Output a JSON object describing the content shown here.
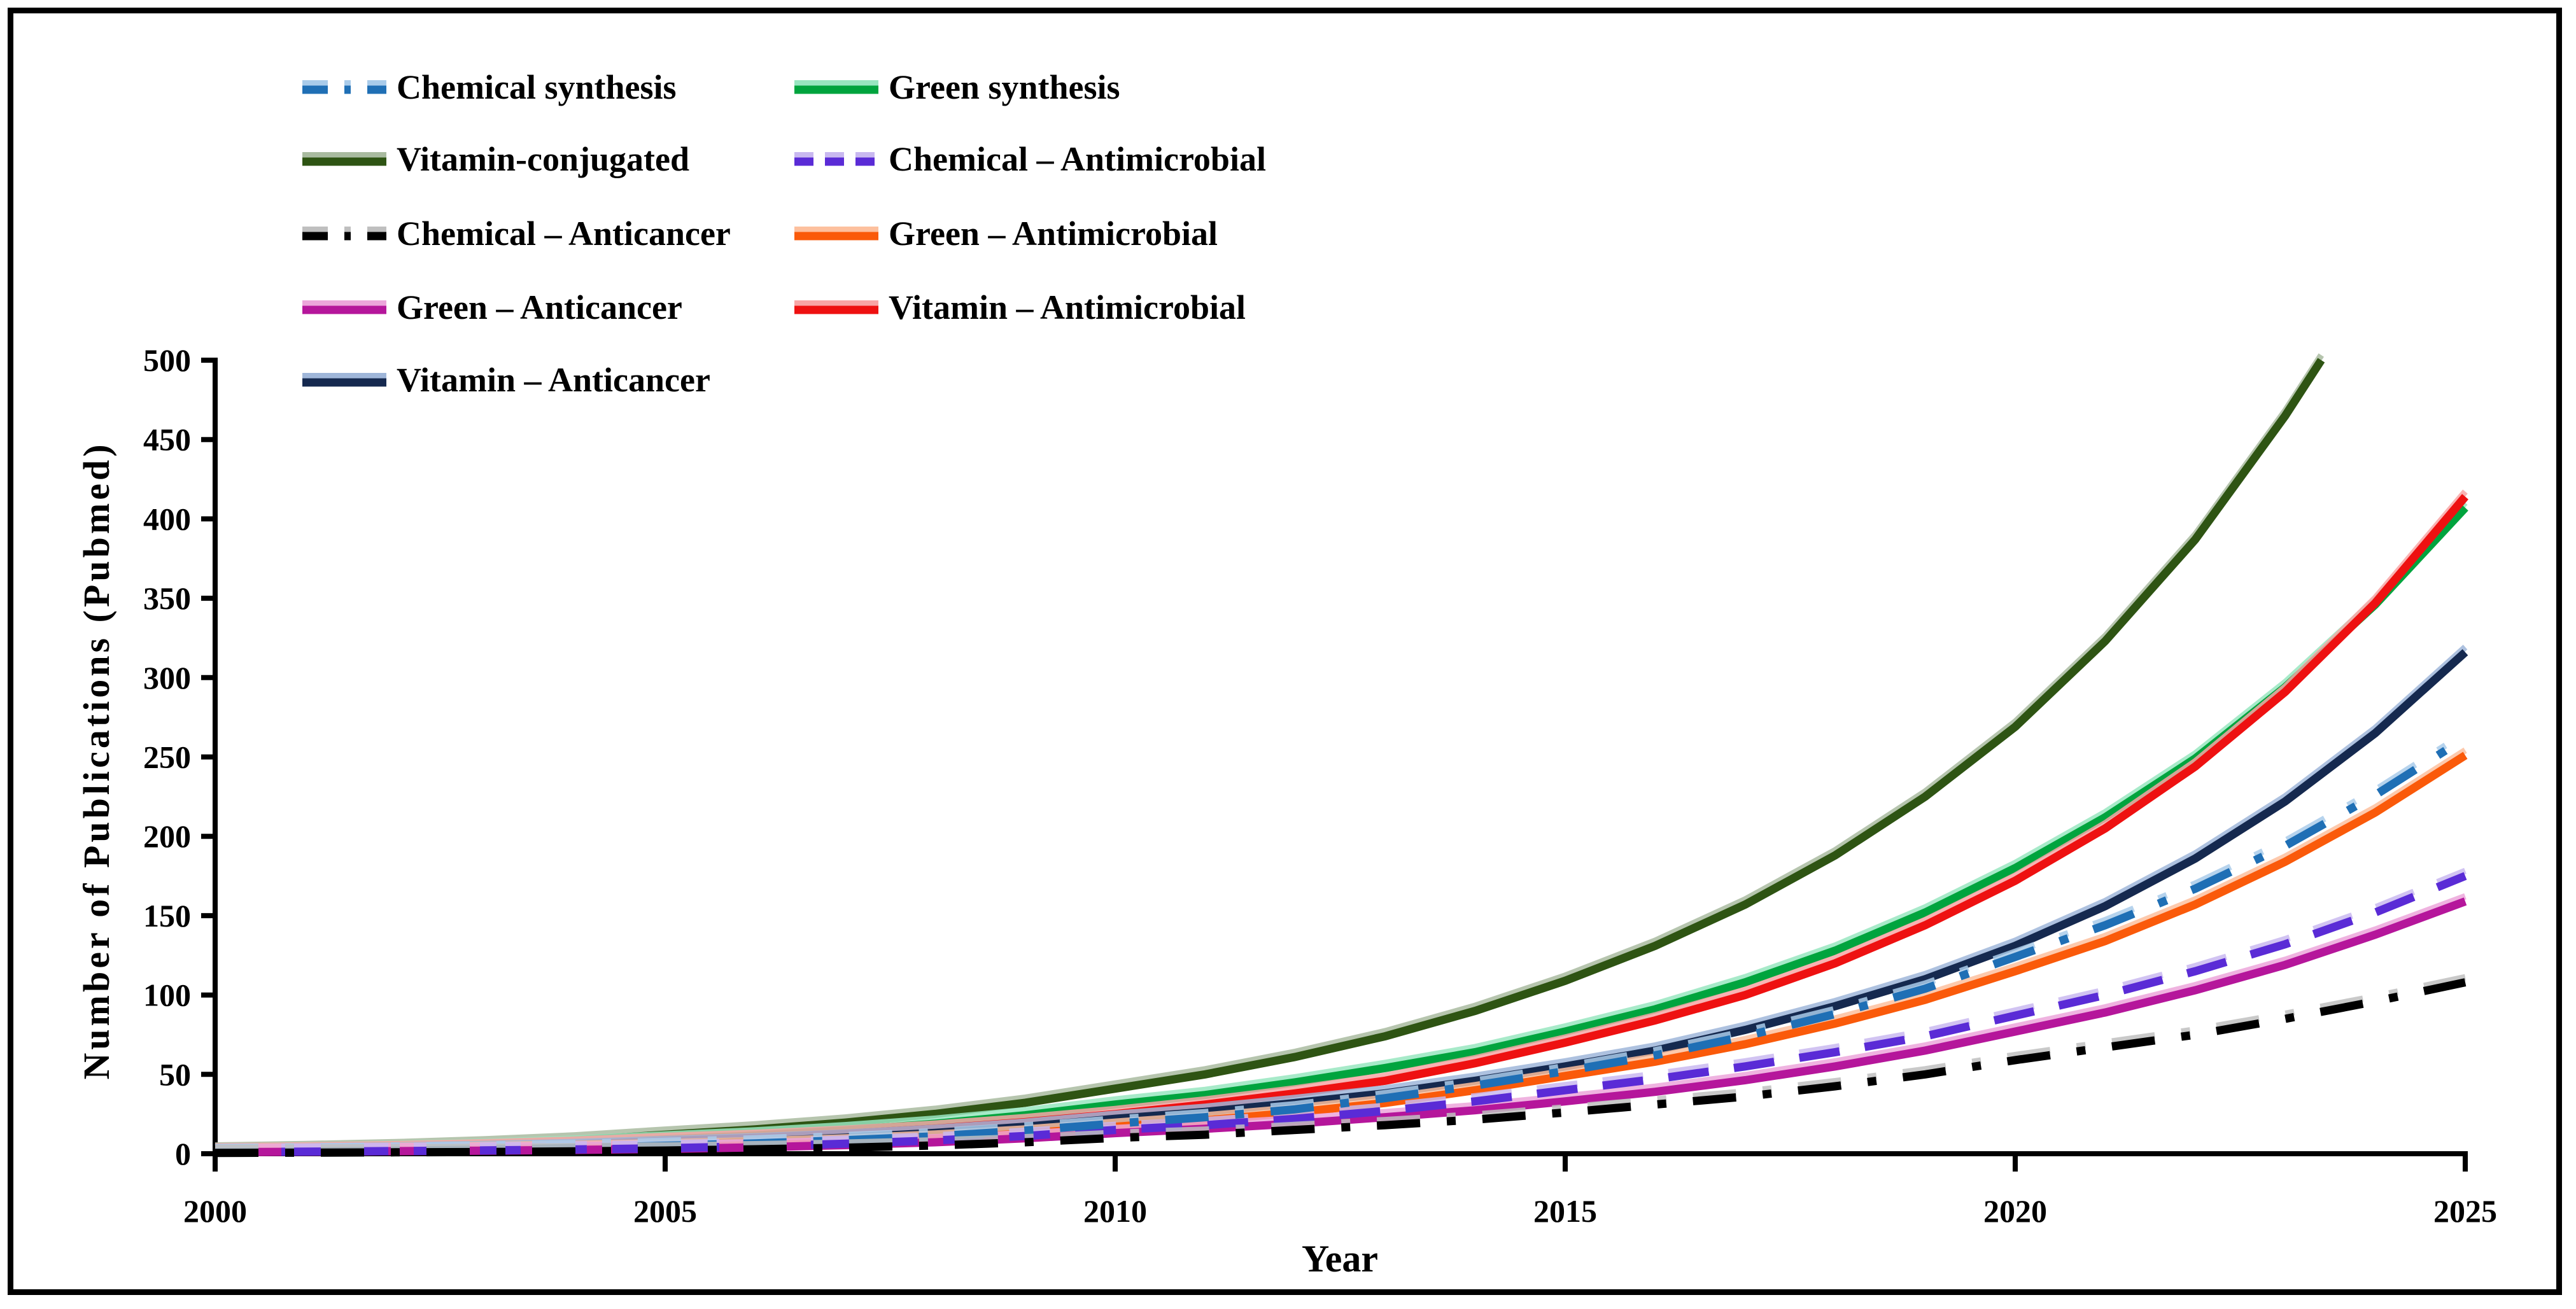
{
  "chart_data": {
    "type": "line",
    "title": "",
    "xlabel": "Year",
    "ylabel": "Number of Publications  (Pubmed)",
    "xlim": [
      2000,
      2025
    ],
    "ylim": [
      0,
      500
    ],
    "x_ticks": [
      2000,
      2005,
      2010,
      2015,
      2020,
      2025
    ],
    "y_ticks": [
      0,
      50,
      100,
      150,
      200,
      250,
      300,
      350,
      400,
      450,
      500
    ],
    "grid": false,
    "legend_position": "top-left",
    "x": [
      2000,
      2001,
      2002,
      2003,
      2004,
      2005,
      2006,
      2007,
      2008,
      2009,
      2010,
      2011,
      2012,
      2013,
      2014,
      2015,
      2016,
      2017,
      2018,
      2019,
      2020,
      2021,
      2022,
      2023,
      2024,
      2025
    ],
    "series": [
      {
        "key": "chemical_synthesis",
        "name": "Chemical synthesis",
        "color": "#1F6FB5",
        "halo": "#A9CBEA",
        "style": "dash-dot",
        "values": [
          1,
          1.4,
          1.9,
          2.6,
          3.6,
          5,
          6.5,
          8.5,
          11,
          14.6,
          19,
          23,
          28,
          35,
          43,
          52,
          62,
          74,
          88,
          104,
          124,
          144,
          167,
          194,
          226,
          262
        ]
      },
      {
        "key": "green_synthesis",
        "name": "Green synthesis",
        "color": "#00A43E",
        "halo": "#98E6C0",
        "style": "solid",
        "values": [
          1.5,
          2.1,
          3.1,
          4.4,
          6.3,
          9,
          11.5,
          14.8,
          18.9,
          24.2,
          31,
          37,
          45,
          54,
          64,
          77,
          91,
          108,
          128,
          152,
          180,
          212,
          249,
          294,
          346,
          407
        ]
      },
      {
        "key": "vitamin_conjugated",
        "name": "Vitamin-conjugated",
        "color": "#2E5413",
        "halo": "#A9BBA0",
        "style": "solid",
        "x": [
          2000,
          2001,
          2002,
          2003,
          2004,
          2005,
          2006,
          2007,
          2008,
          2009,
          2010,
          2011,
          2012,
          2013,
          2014,
          2015,
          2016,
          2017,
          2018,
          2019,
          2020,
          2021,
          2022,
          2023,
          2023.4
        ],
        "values": [
          2,
          2.9,
          4.1,
          5.9,
          8.4,
          12,
          15.3,
          19.6,
          25.1,
          32.1,
          41,
          50,
          61,
          74,
          90,
          109,
          131,
          157,
          188,
          225,
          269,
          323,
          387,
          465,
          500
        ]
      },
      {
        "key": "chemical_antimicrobial",
        "name": "Chemical – Antimicrobial",
        "color": "#5A2BD6",
        "halo": "#C9B8F0",
        "style": "dashed",
        "values": [
          1,
          1.3,
          1.7,
          2.1,
          2.7,
          3.5,
          4.7,
          6.3,
          8.4,
          11.2,
          15,
          18,
          22,
          27,
          33,
          40,
          47,
          55,
          64,
          74,
          87,
          100,
          115,
          132,
          152,
          175
        ]
      },
      {
        "key": "chemical_anticancer",
        "name": "Chemical – Anticancer",
        "color": "#000000",
        "halo": "#BFBFBF",
        "style": "dash-dot",
        "values": [
          0.5,
          0.7,
          0.9,
          1.1,
          1.5,
          2,
          2.8,
          3.8,
          5.2,
          7.2,
          10,
          12,
          15,
          18,
          21.5,
          26,
          31,
          36,
          42.5,
          50,
          59,
          67,
          75,
          85,
          96,
          108
        ]
      },
      {
        "key": "green_antimicrobial",
        "name": "Green – Antimicrobial",
        "color": "#FA5A0A",
        "halo": "#FDC09E",
        "style": "solid",
        "values": [
          1,
          1.3,
          1.7,
          2.3,
          3,
          4,
          5.3,
          7.1,
          9.5,
          12.7,
          17,
          21,
          26,
          32,
          40,
          49,
          58,
          69,
          82,
          97,
          115,
          134,
          157,
          184,
          215,
          251
        ]
      },
      {
        "key": "green_anticancer",
        "name": "Green – Anticancer",
        "color": "#B5169B",
        "halo": "#ECA6DB",
        "style": "solid",
        "values": [
          1,
          1.2,
          1.6,
          1.9,
          2.4,
          3,
          4,
          5.4,
          7.2,
          9.7,
          13,
          15.7,
          19,
          23,
          27.4,
          33,
          39,
          46.3,
          55,
          65,
          77,
          89,
          103,
          119,
          138,
          159
        ]
      },
      {
        "key": "vitamin_antimicrobial",
        "name": "Vitamin – Antimicrobial",
        "color": "#EE1111",
        "halo": "#F8A6A6",
        "style": "solid",
        "values": [
          1.5,
          2.1,
          2.9,
          4.1,
          5.7,
          8,
          10,
          12.6,
          15.8,
          19.9,
          25,
          31,
          38,
          46,
          57,
          70,
          84,
          100,
          120,
          144,
          172,
          205,
          244,
          291,
          347,
          414
        ]
      },
      {
        "key": "vitamin_anticancer",
        "name": "Vitamin – Anticancer",
        "color": "#15294F",
        "halo": "#9FB6D9",
        "style": "solid",
        "values": [
          1,
          1.4,
          2,
          2.9,
          4.2,
          6,
          7.8,
          10.1,
          13.1,
          17,
          22,
          26.4,
          32,
          38,
          46,
          55,
          65,
          78,
          93,
          110,
          131,
          156,
          186,
          222,
          265,
          316
        ]
      }
    ]
  },
  "legend": {
    "order": [
      "chemical_synthesis",
      "green_synthesis",
      "vitamin_conjugated",
      "chemical_antimicrobial",
      "chemical_anticancer",
      "green_antimicrobial",
      "green_anticancer",
      "vitamin_antimicrobial",
      "vitamin_anticancer"
    ]
  }
}
